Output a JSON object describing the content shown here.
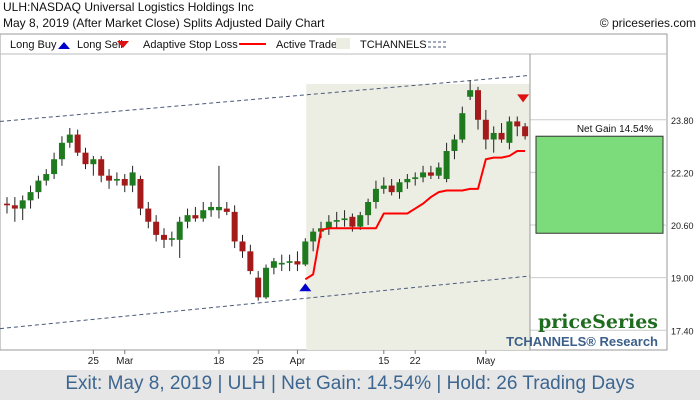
{
  "header": {
    "title": "ULH:NASDAQ Universal Logistics Holdings Inc",
    "subtitle": "May 8, 2019 (After Market Close)  Splits Adjusted Daily Chart",
    "copyright": "© priceseries.com"
  },
  "legend": {
    "long_buy": "Long Buy",
    "long_sell": "Long Sell",
    "adaptive_stop": "Adaptive Stop Loss",
    "active_trade": "Active Trade",
    "tchannels": "TCHANNELS"
  },
  "colors": {
    "up": "#1f7a1f",
    "down": "#a41a1a",
    "stop": "#ff0000",
    "buy_arrow": "#0000cc",
    "sell_arrow": "#dd1111",
    "active_bg": "#eceee4",
    "gain_box": "#7cdc7c",
    "channel": "#4a5a7a",
    "footer_text": "#3c6690"
  },
  "net_gain_label": "Net Gain 14.54%",
  "branding": {
    "brand": "priceSeries",
    "research": "TCHANNELS® Research"
  },
  "footer": "Exit: May 8, 2019 | ULH | Net Gain: 14.54% | Hold: 26 Trading Days",
  "chart_data": {
    "type": "candlestick",
    "y_ticks": [
      17.4,
      19.0,
      20.6,
      22.2,
      23.8
    ],
    "ylim": [
      16.8,
      25.8
    ],
    "x_tick_labels": [
      {
        "label": "25",
        "index": 11
      },
      {
        "label": "Mar",
        "index": 15
      },
      {
        "label": "18",
        "index": 27
      },
      {
        "label": "25",
        "index": 32
      },
      {
        "label": "Apr",
        "index": 37
      },
      {
        "label": "15",
        "index": 48
      },
      {
        "label": "22",
        "index": 52
      },
      {
        "label": "May",
        "index": 61
      }
    ],
    "candles": [
      {
        "o": 21.25,
        "h": 21.45,
        "l": 20.95,
        "c": 21.2
      },
      {
        "o": 21.2,
        "h": 21.45,
        "l": 20.7,
        "c": 21.1
      },
      {
        "o": 21.1,
        "h": 21.5,
        "l": 20.75,
        "c": 21.35
      },
      {
        "o": 21.35,
        "h": 21.8,
        "l": 21.1,
        "c": 21.6
      },
      {
        "o": 21.6,
        "h": 22.1,
        "l": 21.4,
        "c": 21.95
      },
      {
        "o": 21.95,
        "h": 22.3,
        "l": 21.8,
        "c": 22.15
      },
      {
        "o": 22.15,
        "h": 22.8,
        "l": 22.0,
        "c": 22.6
      },
      {
        "o": 22.6,
        "h": 23.3,
        "l": 22.4,
        "c": 23.1
      },
      {
        "o": 23.1,
        "h": 23.55,
        "l": 22.95,
        "c": 23.35
      },
      {
        "o": 23.35,
        "h": 23.5,
        "l": 22.7,
        "c": 22.8
      },
      {
        "o": 22.8,
        "h": 22.95,
        "l": 22.3,
        "c": 22.45
      },
      {
        "o": 22.45,
        "h": 22.7,
        "l": 22.1,
        "c": 22.6
      },
      {
        "o": 22.6,
        "h": 22.7,
        "l": 21.9,
        "c": 22.1
      },
      {
        "o": 22.1,
        "h": 22.3,
        "l": 21.7,
        "c": 21.95
      },
      {
        "o": 21.95,
        "h": 22.2,
        "l": 21.8,
        "c": 22.0
      },
      {
        "o": 22.0,
        "h": 22.15,
        "l": 21.6,
        "c": 21.8
      },
      {
        "o": 21.8,
        "h": 22.4,
        "l": 21.6,
        "c": 22.2
      },
      {
        "o": 22.0,
        "h": 22.1,
        "l": 20.9,
        "c": 21.1
      },
      {
        "o": 21.1,
        "h": 21.3,
        "l": 20.5,
        "c": 20.7
      },
      {
        "o": 20.7,
        "h": 20.9,
        "l": 20.1,
        "c": 20.3
      },
      {
        "o": 20.3,
        "h": 20.5,
        "l": 19.9,
        "c": 20.15
      },
      {
        "o": 20.15,
        "h": 20.4,
        "l": 19.95,
        "c": 20.2
      },
      {
        "o": 20.15,
        "h": 20.85,
        "l": 19.6,
        "c": 20.7
      },
      {
        "o": 20.7,
        "h": 21.1,
        "l": 20.5,
        "c": 20.9
      },
      {
        "o": 20.9,
        "h": 21.15,
        "l": 20.7,
        "c": 20.8
      },
      {
        "o": 20.8,
        "h": 21.3,
        "l": 20.7,
        "c": 21.05
      },
      {
        "o": 21.05,
        "h": 21.3,
        "l": 20.85,
        "c": 21.15
      },
      {
        "o": 21.05,
        "h": 22.4,
        "l": 20.8,
        "c": 21.15
      },
      {
        "o": 21.1,
        "h": 21.3,
        "l": 20.9,
        "c": 21.0
      },
      {
        "o": 21.0,
        "h": 21.2,
        "l": 19.9,
        "c": 20.1
      },
      {
        "o": 20.1,
        "h": 20.3,
        "l": 19.6,
        "c": 19.8
      },
      {
        "o": 19.8,
        "h": 20.0,
        "l": 19.1,
        "c": 19.2
      },
      {
        "o": 19.0,
        "h": 19.2,
        "l": 18.3,
        "c": 18.4
      },
      {
        "o": 18.4,
        "h": 19.4,
        "l": 18.35,
        "c": 19.3
      },
      {
        "o": 19.3,
        "h": 19.6,
        "l": 19.1,
        "c": 19.5
      },
      {
        "o": 19.4,
        "h": 19.7,
        "l": 19.2,
        "c": 19.45
      },
      {
        "o": 19.45,
        "h": 19.7,
        "l": 19.2,
        "c": 19.5
      },
      {
        "o": 19.5,
        "h": 19.8,
        "l": 19.2,
        "c": 19.4
      },
      {
        "o": 19.4,
        "h": 20.2,
        "l": 19.35,
        "c": 20.1
      },
      {
        "o": 20.1,
        "h": 20.5,
        "l": 19.8,
        "c": 20.4
      },
      {
        "o": 20.4,
        "h": 20.7,
        "l": 20.2,
        "c": 20.5
      },
      {
        "o": 20.5,
        "h": 20.9,
        "l": 20.3,
        "c": 20.7
      },
      {
        "o": 20.7,
        "h": 21.0,
        "l": 20.5,
        "c": 20.75
      },
      {
        "o": 20.75,
        "h": 21.05,
        "l": 20.55,
        "c": 20.8
      },
      {
        "o": 20.85,
        "h": 20.95,
        "l": 20.4,
        "c": 20.55
      },
      {
        "o": 20.55,
        "h": 21.0,
        "l": 20.45,
        "c": 20.9
      },
      {
        "o": 20.9,
        "h": 21.4,
        "l": 20.6,
        "c": 21.3
      },
      {
        "o": 21.3,
        "h": 21.95,
        "l": 21.1,
        "c": 21.7
      },
      {
        "o": 21.7,
        "h": 22.05,
        "l": 21.55,
        "c": 21.8
      },
      {
        "o": 21.8,
        "h": 22.0,
        "l": 21.5,
        "c": 21.6
      },
      {
        "o": 21.6,
        "h": 22.0,
        "l": 21.4,
        "c": 21.9
      },
      {
        "o": 21.9,
        "h": 22.15,
        "l": 21.7,
        "c": 22.0
      },
      {
        "o": 22.0,
        "h": 22.2,
        "l": 21.8,
        "c": 22.05
      },
      {
        "o": 22.05,
        "h": 22.4,
        "l": 21.9,
        "c": 22.2
      },
      {
        "o": 22.2,
        "h": 22.4,
        "l": 22.0,
        "c": 22.1
      },
      {
        "o": 22.1,
        "h": 22.5,
        "l": 22.0,
        "c": 22.35
      },
      {
        "o": 22.0,
        "h": 23.1,
        "l": 21.9,
        "c": 22.85
      },
      {
        "o": 22.85,
        "h": 23.35,
        "l": 22.6,
        "c": 23.2
      },
      {
        "o": 23.2,
        "h": 24.2,
        "l": 23.1,
        "c": 24.0
      },
      {
        "o": 24.5,
        "h": 25.0,
        "l": 24.4,
        "c": 24.7
      },
      {
        "o": 24.7,
        "h": 24.8,
        "l": 23.5,
        "c": 23.8
      },
      {
        "o": 23.8,
        "h": 24.1,
        "l": 22.9,
        "c": 23.2
      },
      {
        "o": 23.2,
        "h": 23.6,
        "l": 22.8,
        "c": 23.4
      },
      {
        "o": 23.4,
        "h": 23.7,
        "l": 23.1,
        "c": 23.2
      },
      {
        "o": 23.1,
        "h": 23.9,
        "l": 22.9,
        "c": 23.75
      },
      {
        "o": 23.75,
        "h": 23.9,
        "l": 23.3,
        "c": 23.6
      },
      {
        "o": 23.6,
        "h": 23.7,
        "l": 23.2,
        "c": 23.3
      }
    ],
    "stop_line": [
      [
        38,
        18.95
      ],
      [
        39,
        19.1
      ],
      [
        40,
        20.45
      ],
      [
        41,
        20.5
      ],
      [
        42,
        20.5
      ],
      [
        43,
        20.5
      ],
      [
        44,
        20.5
      ],
      [
        45,
        20.5
      ],
      [
        46,
        20.5
      ],
      [
        47,
        20.5
      ],
      [
        48,
        20.95
      ],
      [
        49,
        20.95
      ],
      [
        50,
        20.95
      ],
      [
        51,
        20.95
      ],
      [
        52,
        21.1
      ],
      [
        53,
        21.25
      ],
      [
        54,
        21.45
      ],
      [
        55,
        21.6
      ],
      [
        56,
        21.65
      ],
      [
        57,
        21.65
      ],
      [
        58,
        21.65
      ],
      [
        59,
        21.7
      ],
      [
        60,
        21.7
      ],
      [
        61,
        22.6
      ],
      [
        62,
        22.65
      ],
      [
        63,
        22.65
      ],
      [
        64,
        22.7
      ],
      [
        65,
        22.85
      ],
      [
        66,
        22.85
      ]
    ],
    "channel_upper": {
      "from": [
        0,
        23.75
      ],
      "to": [
        66,
        25.15
      ]
    },
    "channel_lower": {
      "from": [
        0,
        17.45
      ],
      "to": [
        66,
        19.05
      ]
    },
    "active_trade": {
      "start": 39,
      "end": 66
    },
    "buy_signal": {
      "index": 38,
      "price": 18.95
    },
    "sell_signal": {
      "index": 66,
      "price": 24.45
    },
    "gain_box": {
      "entry": 20.35,
      "exit": 23.3
    }
  }
}
